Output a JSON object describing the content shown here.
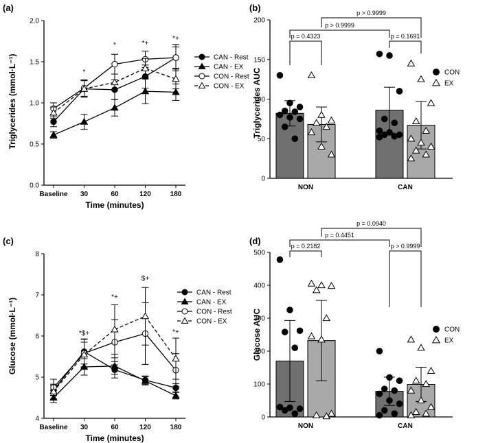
{
  "colors": {
    "dark_bar": "#707070",
    "light_bar": "#a9a9a9",
    "ink": "#000000"
  },
  "chart_data": [
    {
      "panel": "(a)",
      "type": "line",
      "ylabel": "Triglycerides (mmol·L⁻¹)",
      "xlabel": "Time (minutes)",
      "categories": [
        "Baseline",
        "30",
        "60",
        "120",
        "180"
      ],
      "ylim": [
        0,
        2.0
      ],
      "yticks": [
        "0.0",
        "0.5",
        "1.0",
        "1.5",
        "2.0"
      ],
      "legend_position": "right",
      "series": [
        {
          "name": "CAN - Rest",
          "marker": "filled-circle",
          "line": "solid",
          "values": [
            0.77,
            1.17,
            1.16,
            1.32,
            1.55
          ],
          "errors": [
            0.06,
            0.1,
            0.12,
            0.14,
            0.16
          ]
        },
        {
          "name": "CAN - EX",
          "marker": "filled-triangle",
          "line": "solid",
          "values": [
            0.61,
            0.77,
            0.94,
            1.14,
            1.13
          ],
          "errors": [
            0.04,
            0.09,
            0.1,
            0.15,
            0.1
          ]
        },
        {
          "name": "CON - Rest",
          "marker": "open-circle",
          "line": "solid",
          "values": [
            0.93,
            1.18,
            1.47,
            1.53,
            1.55
          ],
          "errors": [
            0.07,
            0.1,
            0.12,
            0.1,
            0.13
          ]
        },
        {
          "name": "CON - EX",
          "marker": "open-triangle",
          "line": "dashed",
          "values": [
            0.88,
            1.17,
            1.25,
            1.42,
            1.29
          ],
          "errors": [
            0.07,
            0.1,
            0.1,
            0.12,
            0.12
          ]
        }
      ],
      "annotations": [
        {
          "x": "30",
          "text": "*",
          "y": 1.35
        },
        {
          "x": "60",
          "text": "*",
          "y": 1.68
        },
        {
          "x": "120",
          "text": "*+",
          "y": 1.7
        },
        {
          "x": "180",
          "text": "*+",
          "y": 1.76
        }
      ]
    },
    {
      "panel": "(b)",
      "type": "bar",
      "ylabel": "Triglycerides AUC",
      "categories": [
        "NON",
        "CAN"
      ],
      "ylim": [
        0,
        200
      ],
      "yticks": [
        "0",
        "50",
        "100",
        "150",
        "200"
      ],
      "legend_position": "right",
      "series": [
        {
          "name": "CON",
          "marker": "filled-circle",
          "values": [
            82,
            86
          ],
          "errors": [
            16,
            29
          ],
          "points": [
            [
              130,
              95,
              90,
              85,
              84,
              80,
              77,
              75,
              65,
              50
            ],
            [
              157,
              155,
              110,
              75,
              70,
              60,
              58,
              55,
              55,
              53,
              52
            ]
          ]
        },
        {
          "name": "EX",
          "marker": "open-triangle",
          "values": [
            68,
            67
          ],
          "errors": [
            22,
            30
          ],
          "points": [
            [
              130,
              80,
              73,
              70,
              65,
              58,
              40,
              30
            ],
            [
              145,
              125,
              95,
              72,
              60,
              50,
              45,
              40,
              35,
              30,
              25
            ]
          ]
        }
      ],
      "comparisons": [
        {
          "text": "p = 0.4323"
        },
        {
          "text": "p = 0.1691"
        },
        {
          "text": "p > 0.9999"
        },
        {
          "text": "p > 0.9999"
        }
      ]
    },
    {
      "panel": "(c)",
      "type": "line",
      "ylabel": "Glucose (mmol·L⁻¹)",
      "xlabel": "Time (minutes)",
      "categories": [
        "Baseline",
        "30",
        "60",
        "120",
        "180"
      ],
      "ylim": [
        4,
        8
      ],
      "yticks": [
        "4",
        "5",
        "6",
        "7",
        "8"
      ],
      "legend_position": "right",
      "series": [
        {
          "name": "CAN - Rest",
          "marker": "filled-circle",
          "line": "solid",
          "values": [
            4.68,
            5.62,
            5.18,
            4.93,
            4.74
          ],
          "errors": [
            0.12,
            0.3,
            0.2,
            0.1,
            0.1
          ]
        },
        {
          "name": "CAN - EX",
          "marker": "filled-triangle",
          "line": "solid",
          "values": [
            4.5,
            5.25,
            5.27,
            4.91,
            4.55
          ],
          "errors": [
            0.12,
            0.2,
            0.2,
            0.1,
            0.08
          ]
        },
        {
          "name": "CON - Rest",
          "marker": "open-circle",
          "line": "solid",
          "values": [
            4.75,
            5.58,
            5.85,
            6.06,
            5.17
          ],
          "errors": [
            0.2,
            0.35,
            0.55,
            0.75,
            0.4
          ]
        },
        {
          "name": "CON - EX",
          "marker": "open-triangle",
          "line": "dashed",
          "values": [
            4.65,
            5.55,
            6.16,
            6.48,
            5.45
          ],
          "errors": [
            0.18,
            0.3,
            0.6,
            0.7,
            0.5
          ]
        }
      ],
      "annotations": [
        {
          "x": "30",
          "text": "*$+",
          "y": 6.02
        },
        {
          "x": "60",
          "text": "*+",
          "y": 6.9
        },
        {
          "x": "120",
          "text": "$+",
          "y": 7.35
        },
        {
          "x": "180",
          "text": "*+",
          "y": 6.05
        }
      ]
    },
    {
      "panel": "(d)",
      "type": "bar",
      "ylabel": "Glucose AUC",
      "categories": [
        "NON",
        "CAN"
      ],
      "ylim": [
        0,
        500
      ],
      "yticks": [
        "0",
        "100",
        "200",
        "300",
        "400",
        "500"
      ],
      "legend_position": "right",
      "series": [
        {
          "name": "CON",
          "marker": "filled-circle",
          "values": [
            170,
            78
          ],
          "errors": [
            123,
            43
          ],
          "points": [
            [
              478,
              325,
              262,
              258,
              210,
              30,
              28,
              25,
              20,
              10
            ],
            [
              200,
              120,
              110,
              85,
              80,
              70,
              50,
              40,
              20,
              10,
              5
            ]
          ]
        },
        {
          "name": "EX",
          "marker": "open-triangle",
          "values": [
            232,
            99
          ],
          "errors": [
            122,
            52
          ],
          "points": [
            [
              405,
              400,
              398,
              385,
              300,
              245,
              235,
              10,
              5,
              2
            ],
            [
              235,
              210,
              140,
              110,
              100,
              80,
              50,
              30,
              15,
              10,
              5
            ]
          ]
        }
      ],
      "comparisons": [
        {
          "text": "p = 0.2182"
        },
        {
          "text": "p > 0.9999"
        },
        {
          "text": "p = 0.4451"
        },
        {
          "text": "p = 0.0940"
        }
      ]
    }
  ]
}
